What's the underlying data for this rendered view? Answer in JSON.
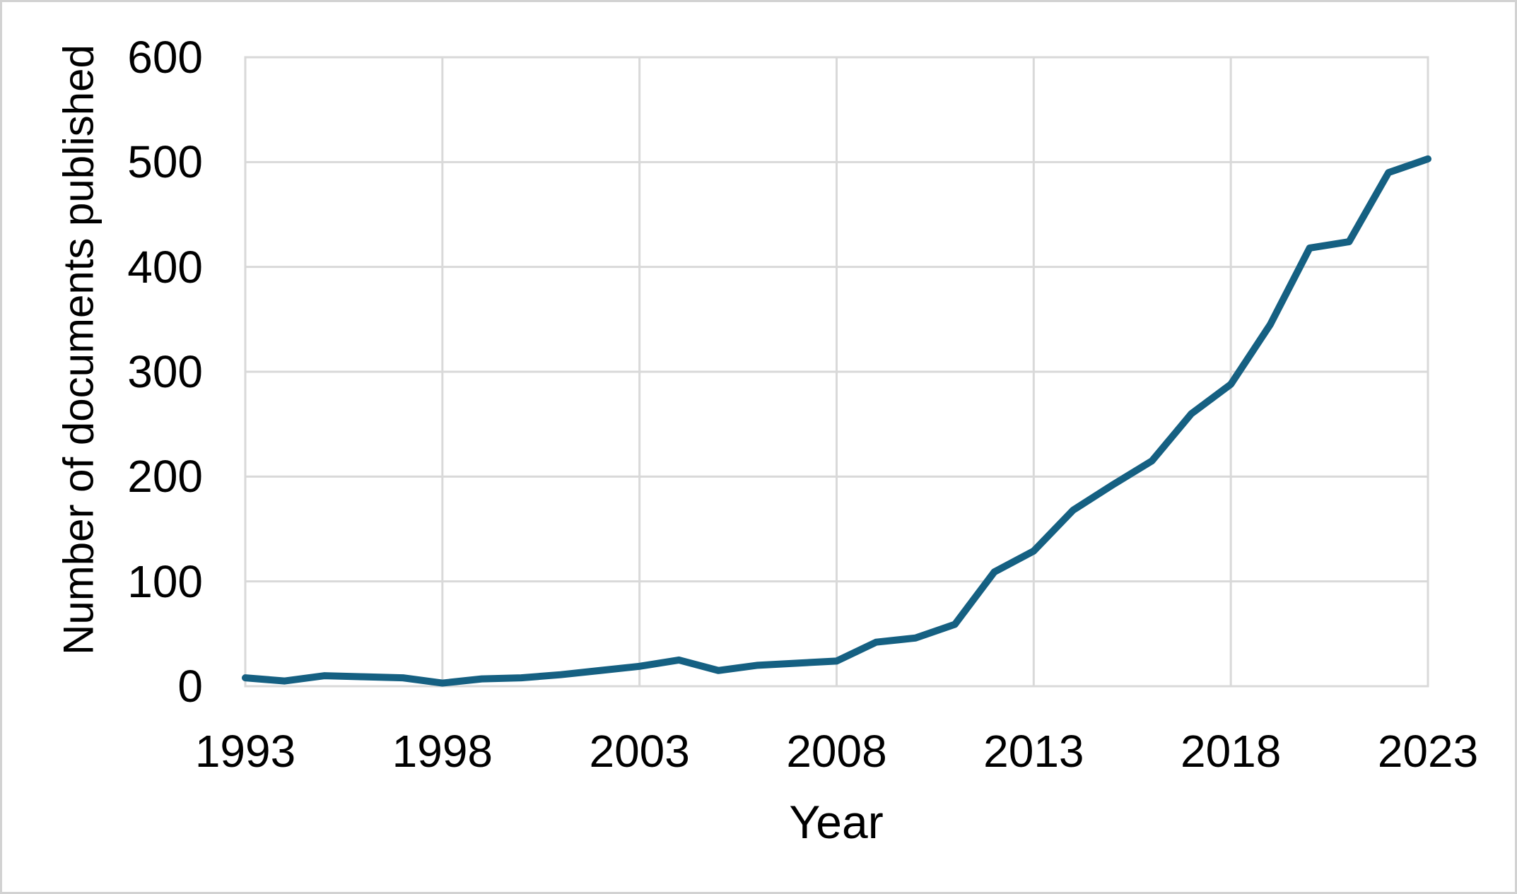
{
  "chart_data": {
    "type": "line",
    "title": "",
    "xlabel": "Year",
    "ylabel": "Number of documents published",
    "x": [
      1993,
      1994,
      1995,
      1996,
      1997,
      1998,
      1999,
      2000,
      2001,
      2002,
      2003,
      2004,
      2005,
      2006,
      2007,
      2008,
      2009,
      2010,
      2011,
      2012,
      2013,
      2014,
      2015,
      2016,
      2017,
      2018,
      2019,
      2020,
      2021,
      2022,
      2023
    ],
    "series": [
      {
        "name": "Number of documents published",
        "values": [
          8,
          5,
          10,
          9,
          8,
          3,
          7,
          8,
          11,
          15,
          19,
          25,
          15,
          20,
          22,
          24,
          42,
          46,
          59,
          109,
          129,
          168,
          192,
          215,
          260,
          288,
          345,
          418,
          424,
          490,
          503
        ]
      }
    ],
    "xlim": [
      1993,
      2023
    ],
    "ylim": [
      0,
      600
    ],
    "ytick_step": 100,
    "yticks": [
      0,
      100,
      200,
      300,
      400,
      500,
      600
    ],
    "xticks": [
      1993,
      1998,
      2003,
      2008,
      2013,
      2018,
      2023
    ],
    "grid": true,
    "legend": "none",
    "colors": {
      "line": "#156082",
      "gridline": "#d9d9d9",
      "plot_border": "#d9d9d9",
      "figure_border": "#d2d2d2",
      "text": "#000000",
      "background": "#ffffff"
    }
  }
}
